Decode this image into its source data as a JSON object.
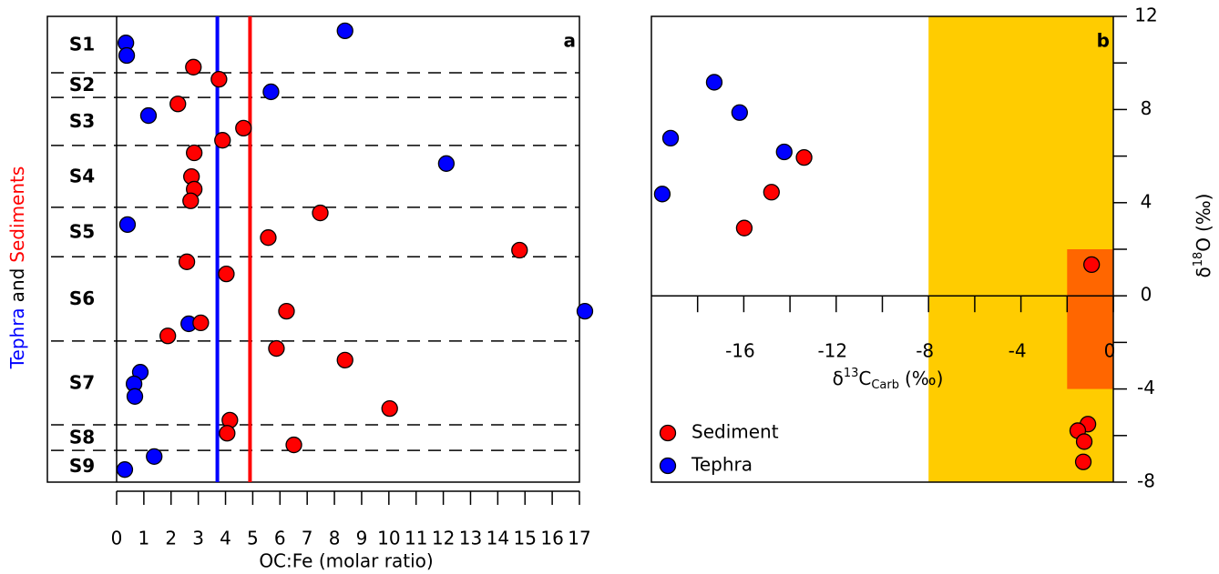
{
  "chart_data": [
    {
      "type": "scatter",
      "title": "a",
      "xlabel": "OC:Fe (molar ratio)",
      "ylabel": [
        {
          "text": "Tephra",
          "color": "#0000ff"
        },
        {
          "text": "and",
          "color": "#000000"
        },
        {
          "text": "Sediments",
          "color": "#ff0000"
        }
      ],
      "axis_style": "box",
      "xlim": [
        0,
        17
      ],
      "xticks": [
        0,
        1,
        2,
        3,
        4,
        5,
        6,
        7,
        8,
        9,
        10,
        11,
        12,
        13,
        14,
        15,
        16,
        17
      ],
      "ylim": [
        100,
        0
      ],
      "sections": {
        "labels": [
          "S1",
          "S2",
          "S3",
          "S4",
          "S5",
          "S6",
          "S7",
          "S8",
          "S9"
        ],
        "boundaries": [
          12.1,
          17.4,
          27.7,
          41.0,
          51.6,
          69.7,
          87.7,
          93.2
        ]
      },
      "vlines": [
        {
          "value": 3.7,
          "color": "#0000ff"
        },
        {
          "value": 4.9,
          "color": "#ff0000"
        }
      ],
      "series": [
        {
          "color": "#0000ff",
          "x": [
            8.39,
            0.34,
            0.37,
            5.67,
            1.17,
            12.11,
            0.4,
            17.2,
            2.65,
            0.87,
            0.64,
            0.67,
            1.38,
            0.3
          ],
          "values": [
            3.1,
            5.7,
            8.4,
            16.2,
            21.3,
            31.6,
            44.7,
            63.3,
            66.0,
            76.4,
            78.9,
            81.6,
            94.5,
            97.3
          ]
        },
        {
          "color": "#ff0000",
          "x": [
            2.82,
            3.76,
            2.25,
            4.66,
            3.89,
            2.85,
            2.75,
            2.85,
            2.72,
            7.48,
            5.57,
            14.8,
            2.58,
            4.03,
            3.09,
            6.24,
            1.88,
            5.87,
            8.39,
            10.03,
            4.16,
            4.06,
            6.51
          ],
          "values": [
            10.9,
            13.5,
            18.8,
            24.0,
            26.6,
            29.3,
            34.4,
            37.1,
            39.6,
            42.2,
            47.5,
            50.2,
            52.7,
            55.3,
            65.8,
            63.3,
            68.6,
            71.3,
            73.8,
            84.2,
            86.7,
            89.5,
            92.0
          ]
        }
      ]
    },
    {
      "type": "scatter",
      "title": "b",
      "xlabel": {
        "pre": "δ",
        "sup": "13",
        "main": "C",
        "sub": "Carb",
        "post": "(‰)"
      },
      "ylabel": {
        "pre": "δ",
        "sup": "18",
        "main": "O",
        "post": "(‰)"
      },
      "axis_style": "origin",
      "xlim": [
        -20,
        0
      ],
      "xticks": [
        -16,
        -12,
        -8,
        -4,
        0
      ],
      "xminorticks": [
        -18,
        -14,
        -10,
        -6,
        -2
      ],
      "ylim": [
        -8,
        12
      ],
      "yticks": [
        -8,
        -4,
        0,
        4,
        8,
        12
      ],
      "yminorticks": [
        -6,
        -2,
        2,
        6,
        10
      ],
      "regions": [
        {
          "xlim": [
            -8,
            0
          ],
          "ylim": [
            -8,
            12
          ],
          "color": "#ffcc00"
        },
        {
          "xlim": [
            -2,
            0
          ],
          "ylim": [
            -4,
            2
          ],
          "color": "#ff6600"
        }
      ],
      "legend": "bottom-left",
      "series": [
        {
          "name": "Sediment",
          "color": "#ff0000",
          "x": [
            -13.39,
            -14.8,
            -15.98,
            -0.94,
            -1.1,
            -1.54,
            -1.26,
            -1.3
          ],
          "values": [
            5.94,
            4.45,
            2.91,
            1.34,
            -5.51,
            -5.79,
            -6.26,
            -7.13
          ]
        },
        {
          "name": "Tephra",
          "color": "#0000ff",
          "x": [
            -17.28,
            -16.18,
            -19.17,
            -14.25,
            -19.53
          ],
          "values": [
            9.17,
            7.87,
            6.77,
            6.18,
            4.37
          ]
        }
      ]
    }
  ]
}
